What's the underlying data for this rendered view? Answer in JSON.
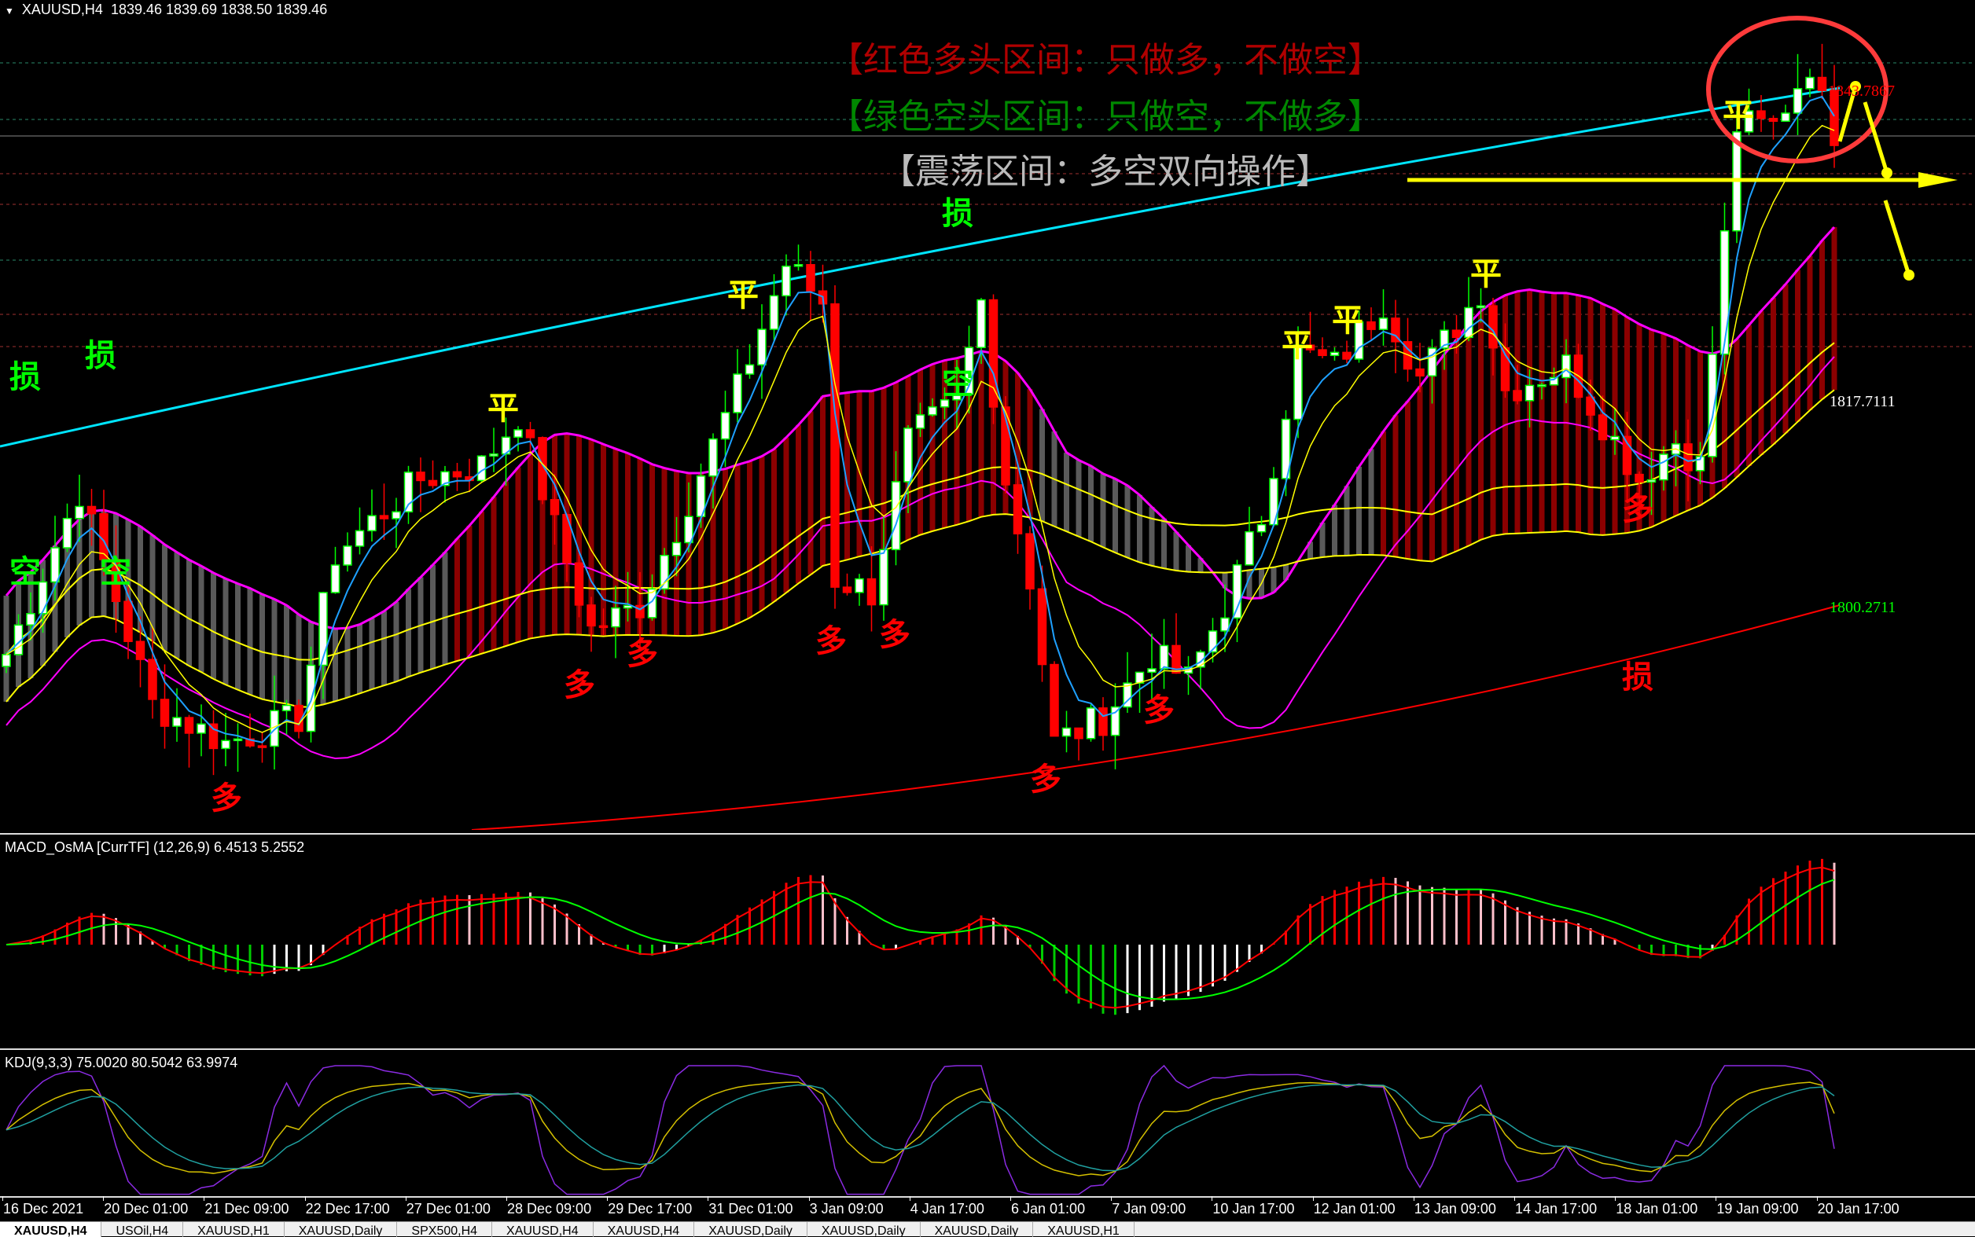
{
  "header": {
    "symbol": "XAUUSD,H4",
    "ohlc": "1839.46 1839.69 1838.50 1839.46"
  },
  "banners": {
    "bull": "【红色多头区间：只做多，不做空】",
    "bear": "【绿色空头区间：只做空，不做多】",
    "range": "【震荡区间：多空双向操作】"
  },
  "price_labels": {
    "top": "1843.7867",
    "mid": "1817.7111",
    "low": "1800.2711"
  },
  "signals": [
    {
      "text": "损",
      "color": "#00ff00"
    },
    {
      "text": "损",
      "color": "#00ff00"
    },
    {
      "text": "损",
      "color": "#00ff00"
    },
    {
      "text": "平",
      "color": "#ffff00"
    },
    {
      "text": "平",
      "color": "#ffff00"
    },
    {
      "text": "平",
      "color": "#ffff00"
    },
    {
      "text": "平",
      "color": "#ffff00"
    },
    {
      "text": "平",
      "color": "#ffff00"
    },
    {
      "text": "平",
      "color": "#ffff00"
    },
    {
      "text": "空",
      "color": "#00ff00"
    },
    {
      "text": "空",
      "color": "#00ff00"
    },
    {
      "text": "空",
      "color": "#00ff00"
    },
    {
      "text": "多",
      "color": "#ff0000"
    },
    {
      "text": "多",
      "color": "#ff0000"
    },
    {
      "text": "多",
      "color": "#ff0000"
    },
    {
      "text": "多",
      "color": "#ff0000"
    },
    {
      "text": "多",
      "color": "#ff0000"
    },
    {
      "text": "多",
      "color": "#ff0000"
    },
    {
      "text": "多",
      "color": "#ff0000"
    },
    {
      "text": "多",
      "color": "#ff0000"
    },
    {
      "text": "损",
      "color": "#ff0000"
    }
  ],
  "macd": {
    "label": "MACD_OsMA [CurrTF] (12,26,9) 6.4513 5.2552"
  },
  "kdj": {
    "label": "KDJ(9,3,3) 75.0020 80.5042 63.9974"
  },
  "time_axis": [
    "16 Dec 2021",
    "20 Dec 01:00",
    "21 Dec 09:00",
    "22 Dec 17:00",
    "27 Dec 01:00",
    "28 Dec 09:00",
    "29 Dec 17:00",
    "31 Dec 01:00",
    "3 Jan 09:00",
    "4 Jan 17:00",
    "6 Jan 01:00",
    "7 Jan 09:00",
    "10 Jan 17:00",
    "12 Jan 01:00",
    "13 Jan 09:00",
    "14 Jan 17:00",
    "18 Jan 01:00",
    "19 Jan 09:00",
    "20 Jan 17:00"
  ],
  "tabs": [
    "XAUUSD,H4",
    "USOil,H4",
    "XAUUSD,H1",
    "XAUUSD,Daily",
    "SPX500,H4",
    "XAUUSD,H4",
    "XAUUSD,H4",
    "XAUUSD,Daily",
    "XAUUSD,Daily",
    "XAUUSD,Daily",
    "XAUUSD,H1"
  ],
  "price_path": [
    [
      0,
      1796.3
    ],
    [
      6,
      1810.1
    ],
    [
      12,
      1792.0
    ],
    [
      18,
      1788.8
    ],
    [
      24,
      1790.9
    ],
    [
      27,
      1804.8
    ],
    [
      34,
      1811.2
    ],
    [
      39,
      1812.3
    ],
    [
      42,
      1816.6
    ],
    [
      45,
      1807
    ],
    [
      48,
      1798.4
    ],
    [
      52,
      1800.5
    ],
    [
      55,
      1807
    ],
    [
      60,
      1818.7
    ],
    [
      64,
      1829.4
    ],
    [
      67,
      1826.2
    ],
    [
      68,
      1802.7
    ],
    [
      71,
      1801.6
    ],
    [
      74,
      1814.4
    ],
    [
      78,
      1817.6
    ],
    [
      80,
      1826.2
    ],
    [
      82,
      1811.2
    ],
    [
      84,
      1802.7
    ],
    [
      86,
      1788.8
    ],
    [
      90,
      1790.9
    ],
    [
      94,
      1796.3
    ],
    [
      97,
      1794.1
    ],
    [
      100,
      1800.5
    ],
    [
      103,
      1808
    ],
    [
      106,
      1821.9
    ],
    [
      109,
      1820.8
    ],
    [
      113,
      1826.2
    ],
    [
      116,
      1819.8
    ],
    [
      121,
      1827.2
    ],
    [
      123,
      1818.7
    ],
    [
      128,
      1820.8
    ],
    [
      134,
      1811.2
    ],
    [
      137,
      1814.4
    ],
    [
      139,
      1812.3
    ],
    [
      142,
      1841.1
    ],
    [
      145,
      1841.1
    ],
    [
      148,
      1846.5
    ],
    [
      150,
      1839.46
    ]
  ],
  "colors": {
    "bull": "#ff0000",
    "bear": "#00ff00",
    "range": "#c0c0c0",
    "cyan": "#00e5ff",
    "magenta": "#ff00ff",
    "yellow": "#ffff00"
  }
}
